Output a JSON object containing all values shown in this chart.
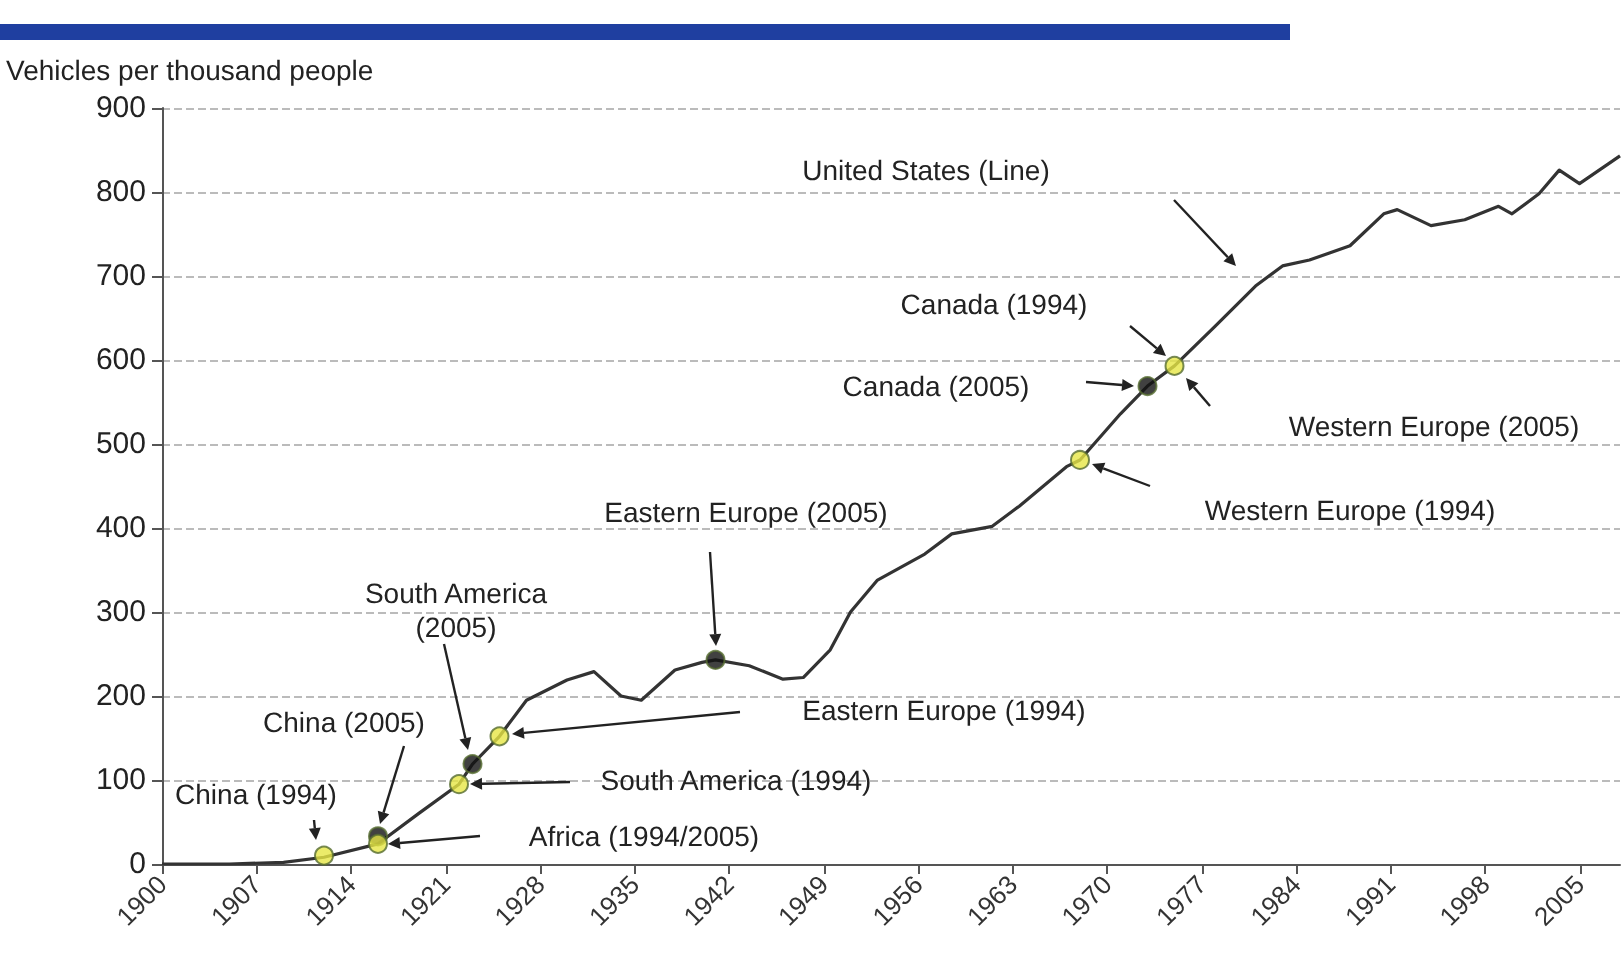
{
  "chart_data": {
    "type": "line",
    "ylabel": "Vehicles per thousand people",
    "xlim": [
      1900,
      2008
    ],
    "xticks": [
      1900,
      1907,
      1914,
      1921,
      1928,
      1935,
      1942,
      1949,
      1956,
      1963,
      1970,
      1977,
      1984,
      1991,
      1998,
      2005
    ],
    "ylim": [
      0,
      900
    ],
    "yticks": [
      0,
      100,
      200,
      300,
      400,
      500,
      600,
      700,
      800,
      900
    ],
    "grid": "y",
    "series": [
      {
        "color": "#333333",
        "marker": "none",
        "x": [
          1900,
          1905,
          1909,
          1912,
          1916,
          1919,
          1922,
          1923,
          1925,
          1927,
          1930,
          1932,
          1934,
          1935.5,
          1938,
          1940,
          1941,
          1943.5,
          1946,
          1947.5,
          1949.5,
          1951,
          1953,
          1956.5,
          1958.5,
          1961.5,
          1963.5,
          1967,
          1968,
          1971,
          1973,
          1975,
          1978,
          1981,
          1983,
          1985,
          1988,
          1990.5,
          1991.5,
          1994,
          1996.5,
          1999,
          2000,
          2002,
          2003.5,
          2005,
          2008
        ],
        "values": [
          0,
          0,
          2,
          8,
          24,
          60,
          95,
          119,
          152,
          195,
          219,
          229,
          200,
          195,
          231,
          240,
          243,
          236,
          220,
          222,
          255,
          300,
          338,
          369,
          393,
          402,
          426,
          473,
          481,
          536,
          569,
          593,
          640,
          688,
          712,
          719,
          736,
          774,
          779,
          760,
          767,
          783,
          774,
          798,
          826,
          810,
          843
        ]
      },
      {
        "type": "scatter",
        "color": "#e6e645",
        "marker": "circle",
        "x": [
          1912,
          1916,
          1922,
          1925,
          1968,
          1975
        ],
        "values": [
          10,
          24,
          95,
          152,
          481,
          593
        ]
      },
      {
        "type": "scatter",
        "color": "#111111",
        "marker": "circle",
        "x": [
          1916,
          1923,
          1941,
          1973
        ],
        "values": [
          33,
          119,
          243,
          569
        ]
      }
    ],
    "annotations": [
      "United States (Line)",
      "Canada (1994)",
      "Canada (2005)",
      "Western Europe (2005)",
      "Western Europe (1994)",
      "Eastern Europe (2005)",
      "South America (2005)",
      "China (2005)",
      "China (1994)",
      "Eastern Europe (1994)",
      "South America (1994)",
      "Africa (1994/2005)"
    ]
  }
}
